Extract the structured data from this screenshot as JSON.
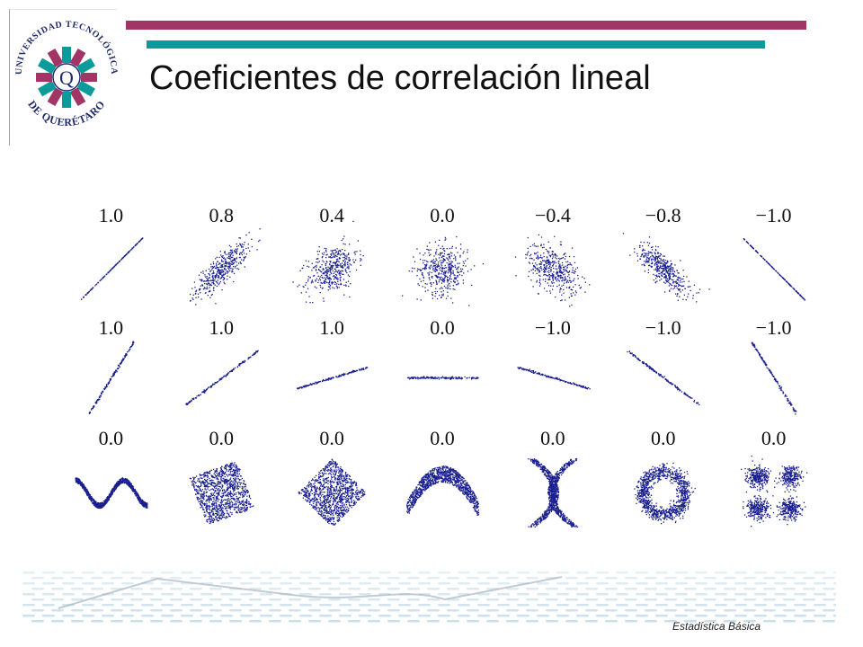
{
  "slide": {
    "title": "Coeficientes de correlación lineal",
    "footer": "Estadística Básica"
  },
  "logo": {
    "text_top": "UNIVERSIDAD TECNOLÓGICA",
    "text_bottom": "DE QUERÉTARO",
    "letter": "Q",
    "colors": [
      "#a03566",
      "#0c9b9b",
      "#1e2a6b"
    ]
  },
  "colors": {
    "accent_bar_top": "#a03566",
    "accent_bar_mid": "#0c9b9b",
    "points": "#1a1f8f"
  },
  "chart_data": {
    "type": "scatter",
    "title": "",
    "description_rows": [
      {
        "row": 1,
        "shapes": [
          "line",
          "ellipse",
          "ellipse",
          "blob",
          "ellipse",
          "ellipse",
          "line"
        ],
        "labels": [
          "1.0",
          "0.8",
          "0.4",
          "0.0",
          "−0.4",
          "−0.8",
          "−1.0"
        ]
      },
      {
        "row": 2,
        "shapes": [
          "line",
          "line",
          "line",
          "line",
          "line",
          "line",
          "line"
        ],
        "labels": [
          "1.0",
          "1.0",
          "1.0",
          "0.0",
          "−1.0",
          "−1.0",
          "−1.0"
        ]
      },
      {
        "row": 3,
        "shapes": [
          "sine",
          "square",
          "diamond",
          "parabola",
          "x-shape",
          "ring",
          "four-clusters"
        ],
        "labels": [
          "0.0",
          "0.0",
          "0.0",
          "0.0",
          "0.0",
          "0.0",
          "0.0"
        ]
      }
    ]
  }
}
